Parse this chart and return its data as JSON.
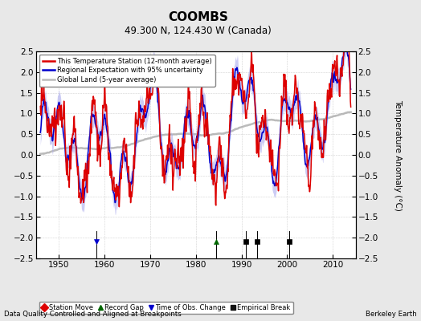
{
  "title": "COOMBS",
  "subtitle": "49.300 N, 124.430 W (Canada)",
  "ylabel": "Temperature Anomaly (°C)",
  "footer_left": "Data Quality Controlled and Aligned at Breakpoints",
  "footer_right": "Berkeley Earth",
  "xlim": [
    1945,
    2015
  ],
  "ylim": [
    -2.5,
    2.5
  ],
  "yticks": [
    -2.5,
    -2,
    -1.5,
    -1,
    -0.5,
    0,
    0.5,
    1,
    1.5,
    2,
    2.5
  ],
  "xticks": [
    1950,
    1960,
    1970,
    1980,
    1990,
    2000,
    2010
  ],
  "bg_color": "#e8e8e8",
  "plot_bg": "#ffffff",
  "station_color": "#dd0000",
  "regional_color": "#0000cc",
  "regional_fill": "#aaaaee",
  "global_color": "#bbbbbb",
  "event_markers": [
    {
      "type": "record_gap",
      "year": 1984.5,
      "color": "#006600",
      "marker": "^"
    },
    {
      "type": "time_obs",
      "year": 1958.2,
      "color": "#0000cc",
      "marker": "v"
    },
    {
      "type": "empirical_break",
      "year": 1991.0,
      "color": "#000000",
      "marker": "s"
    },
    {
      "type": "empirical_break",
      "year": 1993.5,
      "color": "#000000",
      "marker": "s"
    },
    {
      "type": "empirical_break",
      "year": 2000.5,
      "color": "#000000",
      "marker": "s"
    }
  ]
}
